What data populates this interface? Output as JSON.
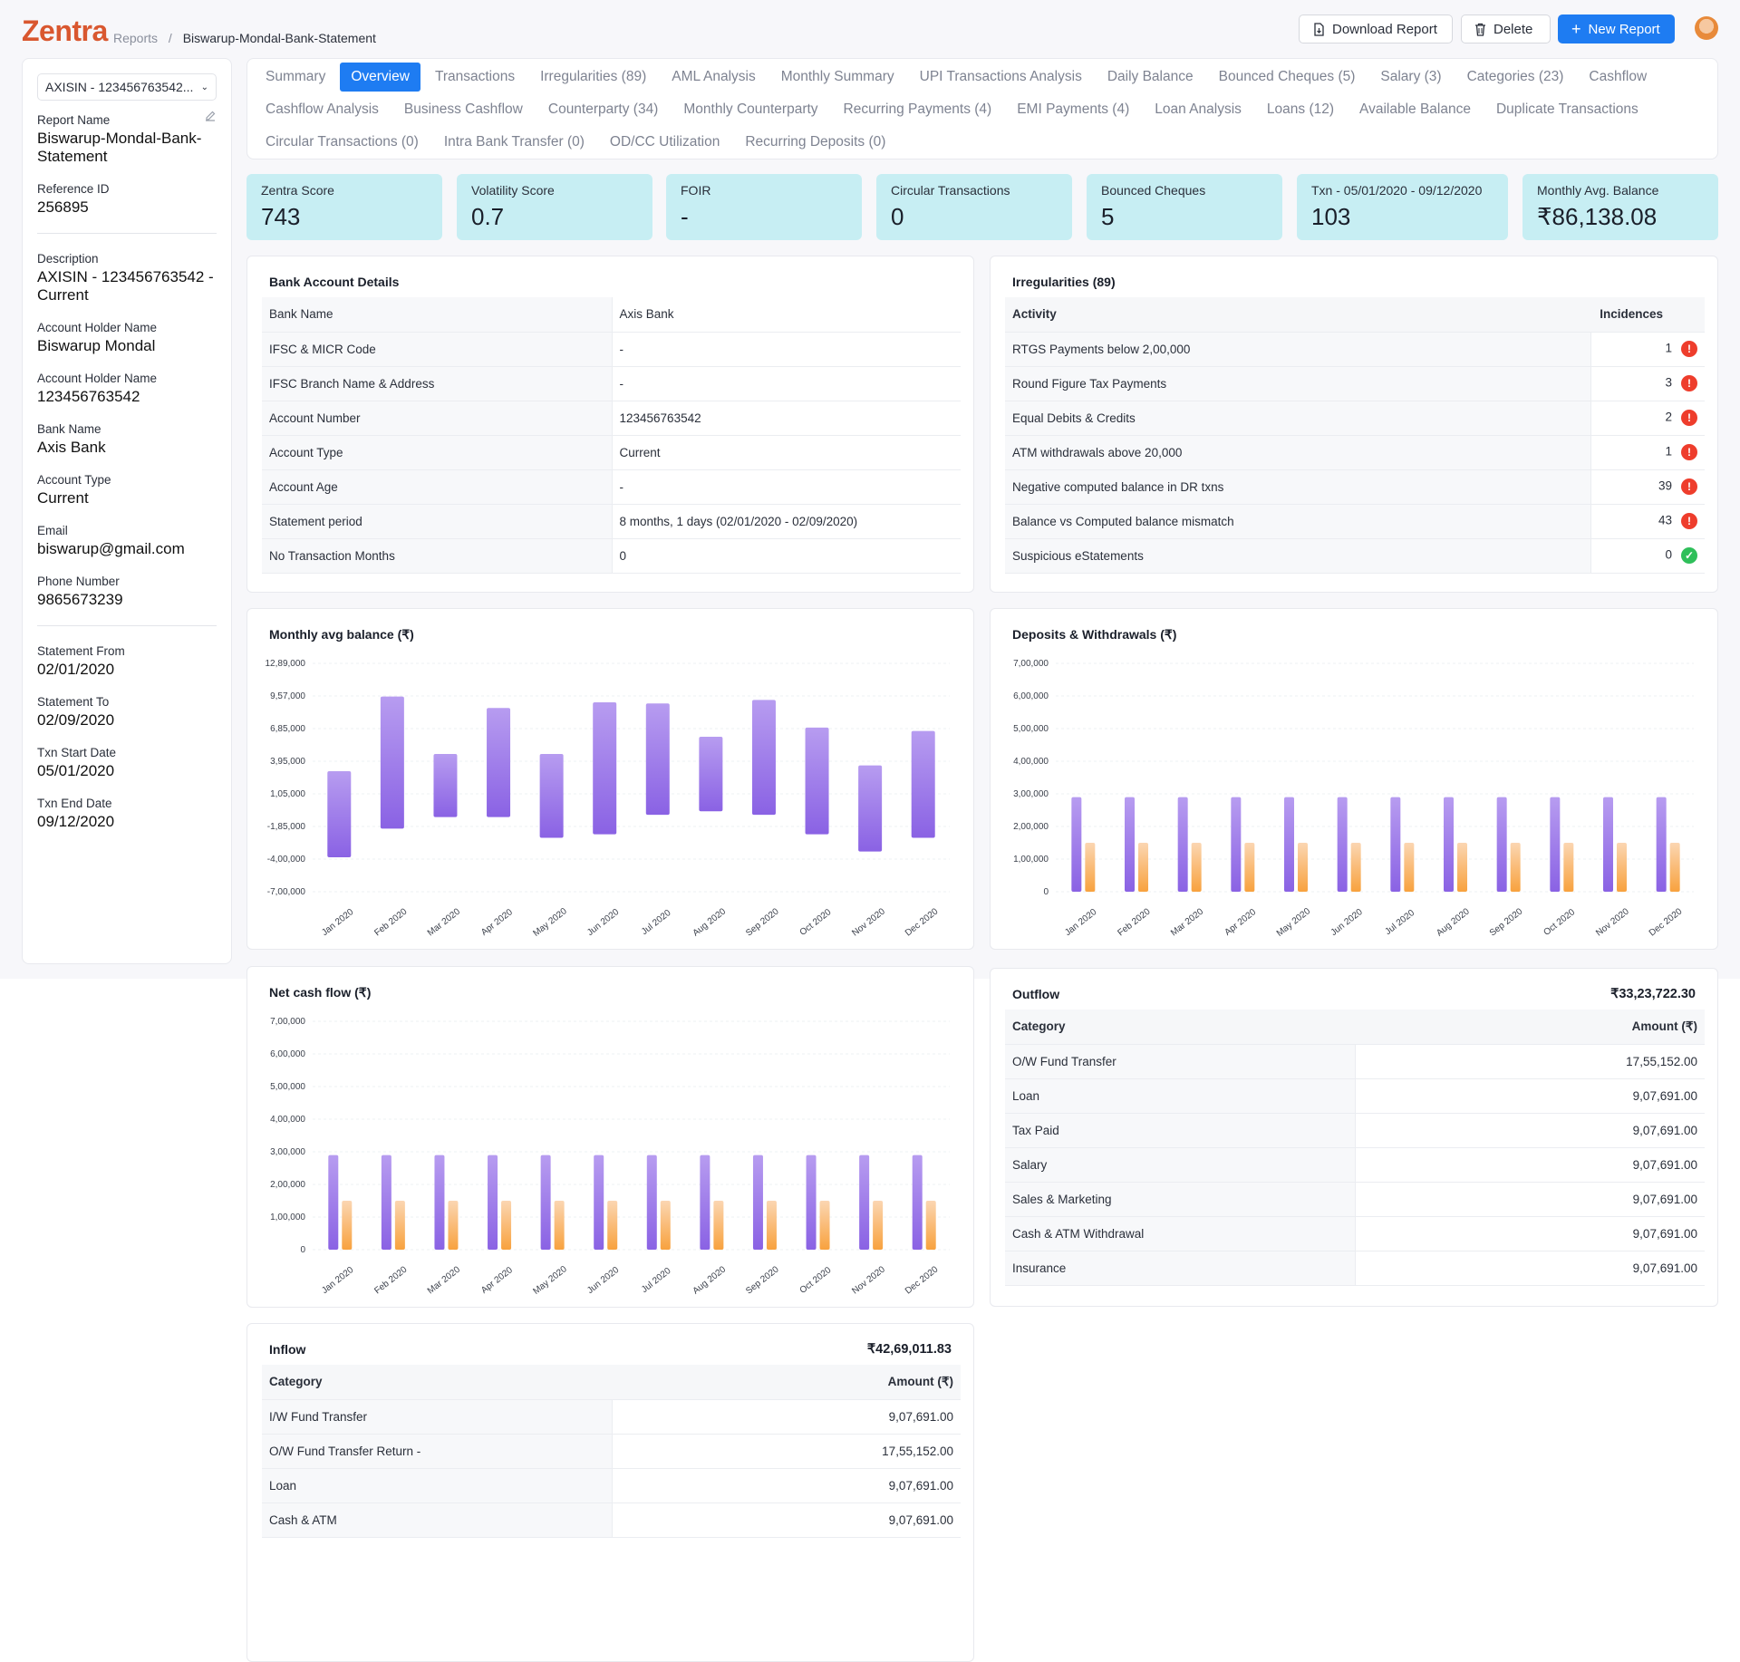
{
  "header": {
    "logo": "Zentra",
    "breadcrumb_root": "Reports",
    "breadcrumb_sep": "/",
    "breadcrumb_current": "Biswarup-Mondal-Bank-Statement",
    "download_label": "Download Report",
    "delete_label": "Delete",
    "new_label": "New Report"
  },
  "sidebar": {
    "account_select": "AXISIN - 123456763542...",
    "report_name_label": "Report Name",
    "report_name": "Biswarup-Mondal-Bank-Statement",
    "reference_label": "Reference ID",
    "reference": "256895",
    "description_label": "Description",
    "description": "AXISIN - 123456763542 - Current",
    "holder_label": "Account Holder Name",
    "holder": "Biswarup Mondal",
    "holder2_label": "Account Holder Name",
    "holder2": "123456763542",
    "bank_label": "Bank Name",
    "bank": "Axis Bank",
    "type_label": "Account Type",
    "type": "Current",
    "email_label": "Email",
    "email": "biswarup@gmail.com",
    "phone_label": "Phone Number",
    "phone": "9865673239",
    "from_label": "Statement From",
    "from": "02/01/2020",
    "to_label": "Statement To",
    "to": "02/09/2020",
    "txn_start_label": "Txn Start Date",
    "txn_start": "05/01/2020",
    "txn_end_label": "Txn End Date",
    "txn_end": "09/12/2020"
  },
  "tabs": {
    "row1": [
      "Summary",
      "Overview",
      "Transactions",
      "Irregularities (89)",
      "AML Analysis",
      "Monthly Summary",
      "UPI Transactions Analysis",
      "Daily Balance",
      "Bounced Cheques (5)",
      "Salary (3)",
      "Categories (23)",
      "Cashflow"
    ],
    "row2": [
      "Cashflow Analysis",
      "Business Cashflow",
      "Counterparty (34)",
      "Monthly Counterparty",
      "Recurring Payments (4)",
      "EMI Payments (4)",
      "Loan Analysis",
      "Loans (12)",
      "Available Balance",
      "Duplicate Transactions"
    ],
    "row3": [
      "Circular Transactions (0)",
      "Intra Bank Transfer (0)",
      "OD/CC Utilization",
      "Recurring Deposits (0)"
    ],
    "active": "Overview"
  },
  "stats": [
    {
      "label": "Zentra Score",
      "value": "743"
    },
    {
      "label": "Volatility Score",
      "value": "0.7"
    },
    {
      "label": "FOIR",
      "value": "-"
    },
    {
      "label": "Circular Transactions",
      "value": "0"
    },
    {
      "label": "Bounced Cheques",
      "value": "5"
    },
    {
      "label": "Txn - 05/01/2020 - 09/12/2020",
      "value": "103"
    },
    {
      "label": "Monthly Avg. Balance",
      "value": "₹86,138.08"
    }
  ],
  "bank_details": {
    "title": "Bank Account Details",
    "rows": [
      [
        "Bank Name",
        "Axis Bank"
      ],
      [
        "IFSC & MICR Code",
        "-"
      ],
      [
        "IFSC Branch Name & Address",
        "-"
      ],
      [
        "Account Number",
        "123456763542"
      ],
      [
        "Account Type",
        "Current"
      ],
      [
        "Account Age",
        "-"
      ],
      [
        "Statement period",
        "8 months, 1 days (02/01/2020 - 02/09/2020)"
      ],
      [
        "No Transaction Months",
        "0"
      ]
    ]
  },
  "irregularities": {
    "title": "Irregularities (89)",
    "col_activity": "Activity",
    "col_incidences": "Incidences",
    "rows": [
      {
        "activity": "RTGS Payments below 2,00,000",
        "count": "1",
        "ok": false
      },
      {
        "activity": "Round Figure Tax Payments",
        "count": "3",
        "ok": false
      },
      {
        "activity": "Equal Debits & Credits",
        "count": "2",
        "ok": false
      },
      {
        "activity": "ATM withdrawals above 20,000",
        "count": "1",
        "ok": false
      },
      {
        "activity": "Negative computed balance in DR txns",
        "count": "39",
        "ok": false
      },
      {
        "activity": "Balance vs Computed balance mismatch",
        "count": "43",
        "ok": false
      },
      {
        "activity": "Suspicious eStatements",
        "count": "0",
        "ok": true
      }
    ]
  },
  "chart_data": [
    {
      "type": "bar",
      "title": "Monthly avg balance (₹)",
      "categories": [
        "Jan 2020",
        "Feb 2020",
        "Mar 2020",
        "Apr 2020",
        "May 2020",
        "Jun 2020",
        "Jul 2020",
        "Aug 2020",
        "Sep 2020",
        "Oct 2020",
        "Nov 2020",
        "Dec 2020"
      ],
      "series": [
        {
          "ranges": [
            [
              -400000,
              350000
            ],
            [
              -150000,
              1000000
            ],
            [
              -50000,
              500000
            ],
            [
              -50000,
              900000
            ],
            [
              -230000,
              500000
            ],
            [
              -200000,
              950000
            ],
            [
              -30000,
              940000
            ],
            [
              0,
              650000
            ],
            [
              -30000,
              970000
            ],
            [
              -200000,
              730000
            ],
            [
              -350000,
              400000
            ],
            [
              -230000,
              700000
            ]
          ]
        }
      ],
      "yticks": [
        "12,89,000",
        "9,57,000",
        "6,85,000",
        "3,95,000",
        "1,05,000",
        "-1,85,000",
        "-4,00,000",
        "-7,00,000"
      ],
      "ylim": [
        -700000,
        1289000
      ]
    },
    {
      "type": "bar",
      "title": "Deposits & Withdrawals (₹)",
      "categories": [
        "Jan 2020",
        "Feb 2020",
        "Mar 2020",
        "Apr 2020",
        "May 2020",
        "Jun 2020",
        "Jul 2020",
        "Aug 2020",
        "Sep 2020",
        "Oct 2020",
        "Nov 2020",
        "Dec 2020"
      ],
      "series": [
        {
          "values": [
            290000,
            290000,
            290000,
            290000,
            290000,
            290000,
            290000,
            290000,
            290000,
            290000,
            290000,
            290000
          ]
        },
        {
          "values": [
            150000,
            150000,
            150000,
            150000,
            150000,
            150000,
            150000,
            150000,
            150000,
            150000,
            150000,
            150000
          ]
        }
      ],
      "yticks": [
        "7,00,000",
        "6,00,000",
        "5,00,000",
        "4,00,000",
        "3,00,000",
        "2,00,000",
        "1,00,000",
        "0"
      ],
      "ylim": [
        0,
        700000
      ]
    },
    {
      "type": "bar",
      "title": "Net cash flow (₹)",
      "categories": [
        "Jan 2020",
        "Feb 2020",
        "Mar 2020",
        "Apr 2020",
        "May 2020",
        "Jun 2020",
        "Jul 2020",
        "Aug 2020",
        "Sep 2020",
        "Oct 2020",
        "Nov 2020",
        "Dec 2020"
      ],
      "series": [
        {
          "values": [
            290000,
            290000,
            290000,
            290000,
            290000,
            290000,
            290000,
            290000,
            290000,
            290000,
            290000,
            290000
          ]
        },
        {
          "values": [
            150000,
            150000,
            150000,
            150000,
            150000,
            150000,
            150000,
            150000,
            150000,
            150000,
            150000,
            150000
          ]
        }
      ],
      "yticks": [
        "7,00,000",
        "6,00,000",
        "5,00,000",
        "4,00,000",
        "3,00,000",
        "2,00,000",
        "1,00,000",
        "0"
      ],
      "ylim": [
        0,
        700000
      ]
    }
  ],
  "outflow": {
    "title": "Outflow",
    "total": "₹33,23,722.30",
    "col_category": "Category",
    "col_amount": "Amount (₹)",
    "rows": [
      [
        "O/W Fund Transfer",
        "17,55,152.00"
      ],
      [
        "Loan",
        "9,07,691.00"
      ],
      [
        "Tax Paid",
        "9,07,691.00"
      ],
      [
        "Salary",
        "9,07,691.00"
      ],
      [
        "Sales & Marketing",
        "9,07,691.00"
      ],
      [
        "Cash & ATM Withdrawal",
        "9,07,691.00"
      ],
      [
        "Insurance",
        "9,07,691.00"
      ]
    ]
  },
  "inflow": {
    "title": "Inflow",
    "total": "₹42,69,011.83",
    "col_category": "Category",
    "col_amount": "Amount (₹)",
    "rows": [
      [
        "I/W Fund Transfer",
        "9,07,691.00"
      ],
      [
        "O/W Fund Transfer Return -",
        "17,55,152.00"
      ],
      [
        "Loan",
        "9,07,691.00"
      ],
      [
        "Cash & ATM",
        "9,07,691.00"
      ]
    ]
  },
  "colors": {
    "accent": "#1e7cf2",
    "logo": "#d9572f",
    "stat_bg": "#c7eef3",
    "bar_purple": "#8e6ae6",
    "bar_orange": "#f8a94a",
    "danger": "#ee3d2c",
    "success": "#2fbf5a"
  }
}
